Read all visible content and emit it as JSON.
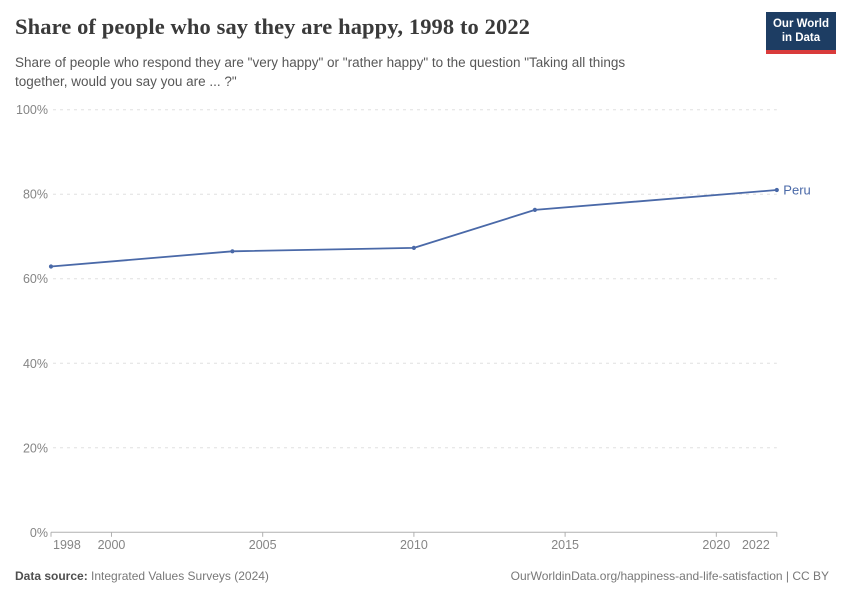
{
  "header": {
    "title": "Share of people who say they are happy, 1998 to 2022",
    "subtitle": "Share of people who respond they are \"very happy\" or \"rather happy\" to the question \"Taking all things together, would you say you are ... ?\""
  },
  "logo": {
    "line1": "Our World",
    "line2": "in Data"
  },
  "chart_data": {
    "type": "line",
    "title": "Share of people who say they are happy, 1998 to 2022",
    "xlabel": "",
    "ylabel": "",
    "unit": "%",
    "xlim": [
      1998,
      2022
    ],
    "ylim": [
      0,
      100
    ],
    "yticks": [
      0,
      20,
      40,
      60,
      80,
      100
    ],
    "xticks": [
      1998,
      2000,
      2005,
      2010,
      2015,
      2020,
      2022
    ],
    "grid": "horizontal-dashed",
    "legend": "end-of-line-label",
    "series": [
      {
        "name": "Peru",
        "color": "#4a69a8",
        "x": [
          1998,
          2004,
          2010,
          2014,
          2022
        ],
        "values": [
          62.9,
          66.5,
          67.3,
          76.3,
          81
        ]
      }
    ]
  },
  "footer": {
    "source_label": "Data source:",
    "source_text": " Integrated Values Surveys (2024)",
    "link_text": "OurWorldinData.org/happiness-and-life-satisfaction | CC BY"
  },
  "colors": {
    "line": "#4a69a8",
    "logo_bg": "#1d3d63",
    "logo_stripe": "#d93b3b",
    "grid": "#e0e0e0",
    "axis": "#b0b0b0",
    "tick_label": "#858585"
  }
}
